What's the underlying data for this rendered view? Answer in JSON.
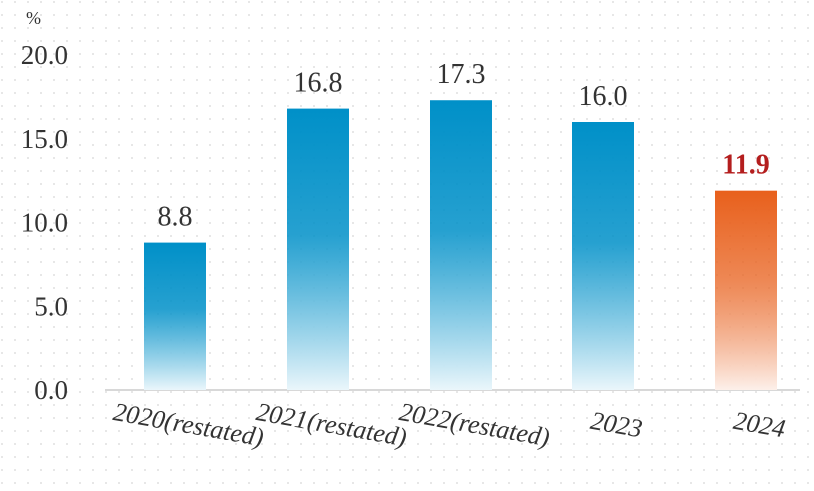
{
  "chart_data": {
    "type": "bar",
    "unit_label": "%",
    "categories": [
      "2020(restated)",
      "2021(restated)",
      "2022(restated)",
      "2023",
      "2024"
    ],
    "values": [
      8.8,
      16.8,
      17.3,
      16.0,
      11.9
    ],
    "value_labels": [
      "8.8",
      "16.8",
      "17.3",
      "16.0",
      "11.9"
    ],
    "highlight_index": 4,
    "y_ticks": [
      "0.0",
      "5.0",
      "10.0",
      "15.0",
      "20.0"
    ],
    "ylim": [
      0,
      20
    ],
    "grid": true,
    "colors": {
      "bar_top": "#0090c8",
      "bar_bottom": "#eaf6fb",
      "highlight_top": "#e8601c",
      "highlight_bottom": "#fdf0ea",
      "highlight_label": "#b41e1e",
      "label_text": "#333333",
      "axis_line": "#cccccc",
      "grid_dot": "#d6d6d6"
    }
  }
}
